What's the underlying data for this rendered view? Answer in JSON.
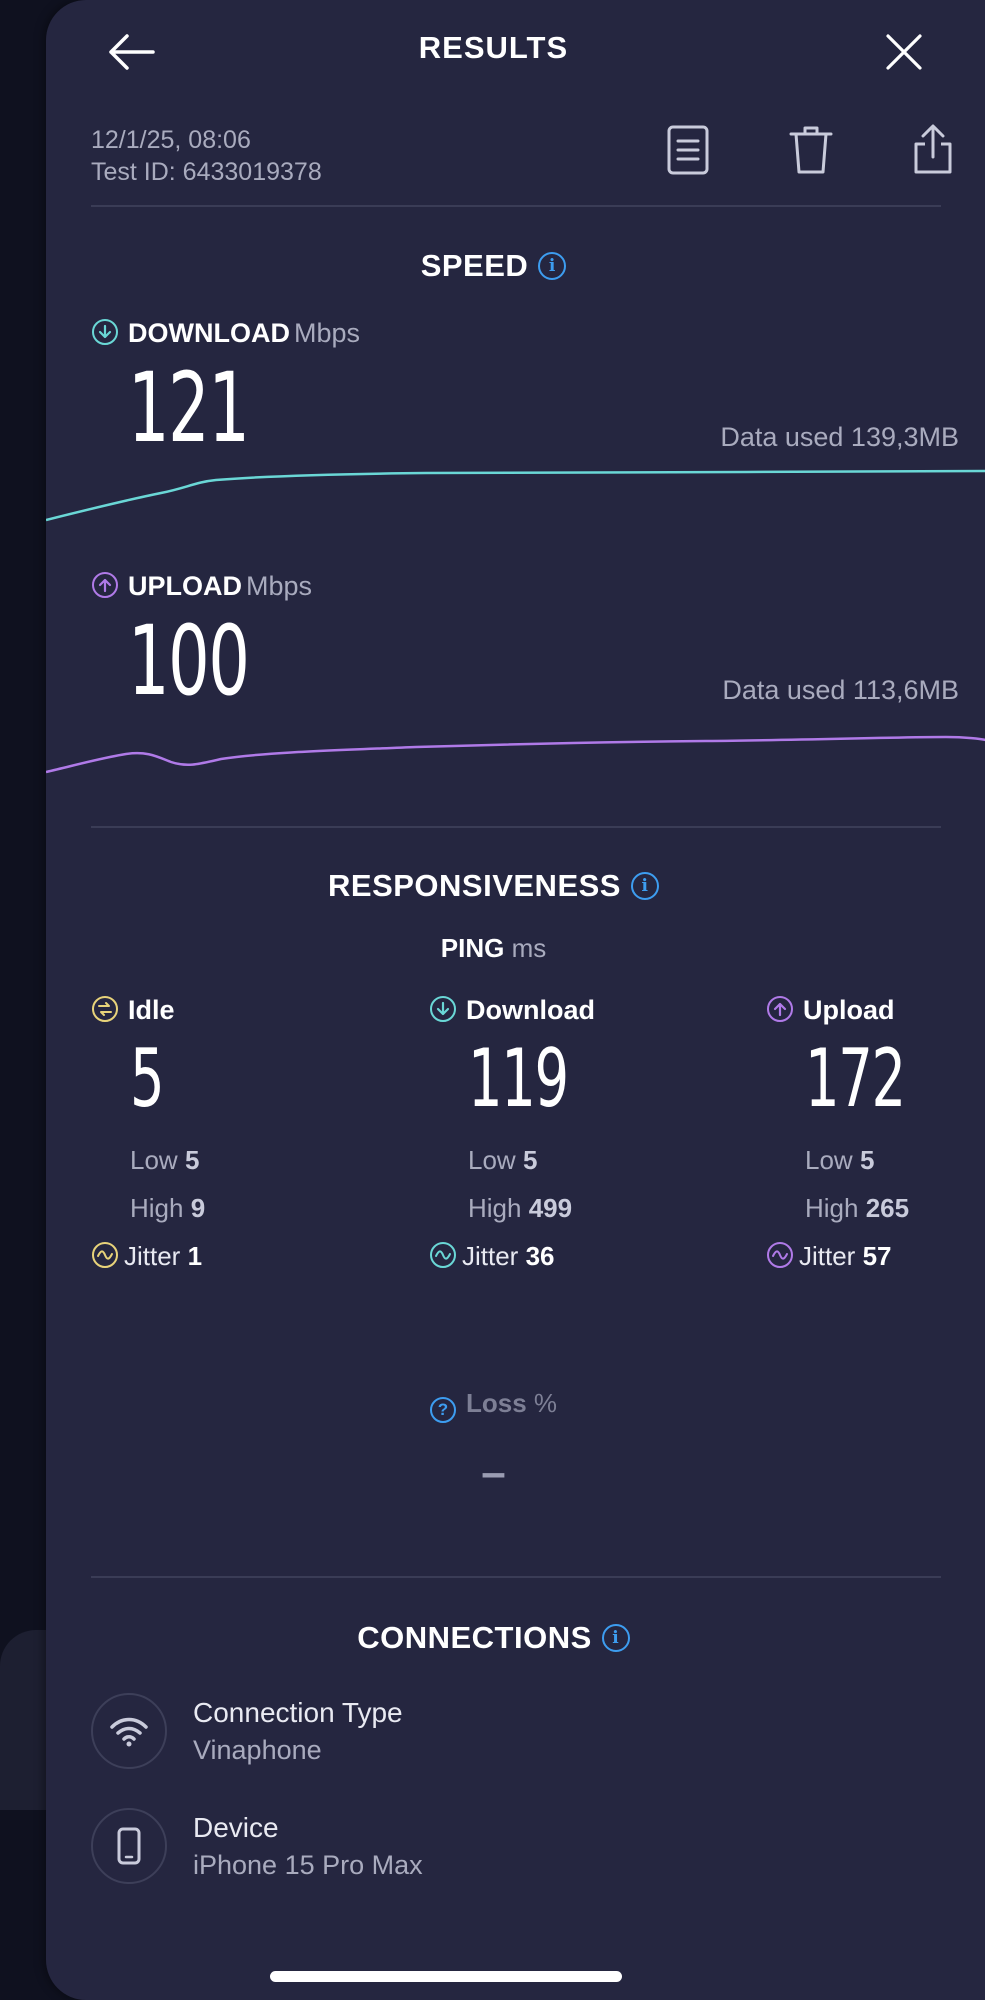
{
  "header": {
    "title": "RESULTS",
    "date": "12/1/25, 08:06",
    "test_id": "Test ID: 6433019378"
  },
  "speed": {
    "title": "SPEED",
    "download": {
      "label": "DOWNLOAD",
      "unit": "Mbps",
      "value": "121",
      "data_used": "Data used 139,3MB",
      "color": "#6ad7d6"
    },
    "upload": {
      "label": "UPLOAD",
      "unit": "Mbps",
      "value": "100",
      "data_used": "Data used 113,6MB",
      "color": "#b07ae8"
    }
  },
  "responsiveness": {
    "title": "RESPONSIVENESS",
    "ping_label": "PING",
    "ping_unit": "ms",
    "columns": [
      {
        "label": "Idle",
        "value": "5",
        "low_label": "Low",
        "low": "5",
        "high_label": "High",
        "high": "9",
        "jitter_label": "Jitter",
        "jitter": "1",
        "color": "#e8d37a"
      },
      {
        "label": "Download",
        "value": "119",
        "low_label": "Low",
        "low": "5",
        "high_label": "High",
        "high": "499",
        "jitter_label": "Jitter",
        "jitter": "36",
        "color": "#6ad7d6"
      },
      {
        "label": "Upload",
        "value": "172",
        "low_label": "Low",
        "low": "5",
        "high_label": "High",
        "high": "265",
        "jitter_label": "Jitter",
        "jitter": "57",
        "color": "#b07ae8"
      }
    ],
    "loss_label": "Loss",
    "loss_unit": "%",
    "loss_value": "–"
  },
  "connections": {
    "title": "CONNECTIONS",
    "items": [
      {
        "title": "Connection Type",
        "value": "Vinaphone",
        "icon": "wifi-icon"
      },
      {
        "title": "Device",
        "value": "iPhone 15 Pro Max",
        "icon": "phone-icon"
      }
    ]
  },
  "colors": {
    "background": "#252640",
    "accent_info": "#3d9df0"
  }
}
